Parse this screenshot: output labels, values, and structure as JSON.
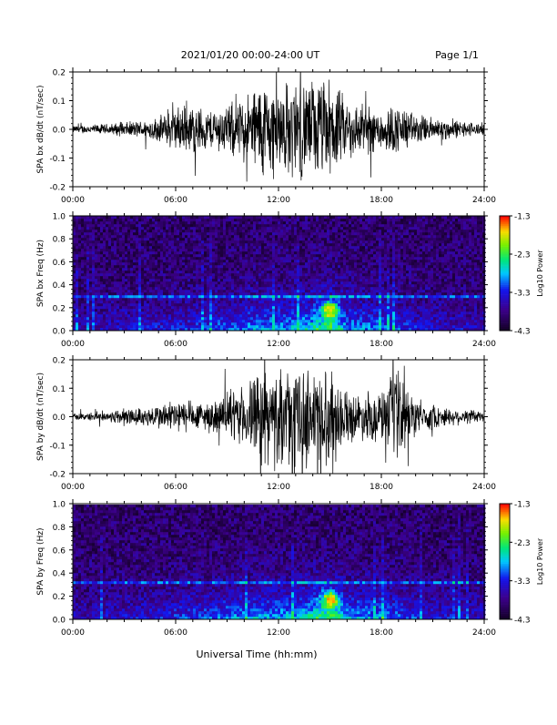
{
  "header": {
    "title": "2021/01/20  00:00-24:00 UT",
    "page": "Page 1/1"
  },
  "footer": {
    "xlabel": "Universal Time (hh:mm)"
  },
  "chart_data": [
    {
      "type": "line",
      "title": "",
      "ylabel": "SPA bx dB/dt (nT/sec)",
      "xlabel": "",
      "xlim": [
        "00:00",
        "24:00"
      ],
      "ylim": [
        -0.2,
        0.2
      ],
      "x_ticks": [
        "00:00",
        "06:00",
        "12:00",
        "18:00",
        "24:00"
      ],
      "y_ticks": [
        "-0.2",
        "-0.1",
        "0.0",
        "0.1",
        "0.2"
      ],
      "envelope": {
        "hours": [
          0,
          2,
          4,
          5,
          6,
          7,
          8,
          9,
          10,
          11,
          12,
          13,
          14,
          15,
          16,
          17,
          18,
          19,
          20,
          21,
          22,
          23,
          24
        ],
        "amplitude": [
          0.015,
          0.022,
          0.035,
          0.05,
          0.09,
          0.1,
          0.08,
          0.1,
          0.13,
          0.2,
          0.18,
          0.2,
          0.2,
          0.2,
          0.12,
          0.1,
          0.09,
          0.1,
          0.06,
          0.05,
          0.04,
          0.03,
          0.025
        ]
      },
      "color": "#000000"
    },
    {
      "type": "heatmap",
      "title": "",
      "ylabel": "SPA bx Freq (Hz)",
      "xlabel": "",
      "xlim": [
        "00:00",
        "24:00"
      ],
      "ylim": [
        0.0,
        1.0
      ],
      "x_ticks": [
        "00:00",
        "06:00",
        "12:00",
        "18:00",
        "24:00"
      ],
      "y_ticks": [
        "0.0",
        "0.2",
        "0.4",
        "0.6",
        "0.8",
        "1.0"
      ],
      "colorbar": {
        "label": "Log10 Power",
        "ticks": [
          "-1.3",
          "-2.3",
          "-3.3",
          "-4.3"
        ],
        "range": [
          -4.3,
          -1.3
        ]
      },
      "activity_hours": [
        0,
        3,
        6,
        9,
        11,
        12,
        13,
        14,
        15,
        16,
        18,
        20,
        24
      ],
      "activity_level": [
        0.2,
        0.3,
        0.35,
        0.5,
        0.65,
        0.6,
        0.7,
        0.85,
        1.0,
        0.6,
        0.55,
        0.35,
        0.25
      ],
      "peak": {
        "hour": 15,
        "freq_hz": 0.18,
        "log_power": -1.3
      },
      "line_freq_hz": 0.3
    },
    {
      "type": "line",
      "title": "",
      "ylabel": "SPA by dB/dt (nT/sec)",
      "xlabel": "",
      "xlim": [
        "00:00",
        "24:00"
      ],
      "ylim": [
        -0.2,
        0.2
      ],
      "x_ticks": [
        "00:00",
        "06:00",
        "12:00",
        "18:00",
        "24:00"
      ],
      "y_ticks": [
        "-0.2",
        "-0.1",
        "0.0",
        "0.1",
        "0.2"
      ],
      "envelope": {
        "hours": [
          0,
          2,
          3,
          4,
          5,
          6,
          7,
          8,
          9,
          10,
          11,
          12,
          13,
          14,
          15,
          16,
          17,
          18,
          19,
          20,
          21,
          22,
          23,
          24
        ],
        "amplitude": [
          0.012,
          0.02,
          0.04,
          0.035,
          0.05,
          0.07,
          0.06,
          0.06,
          0.09,
          0.12,
          0.2,
          0.18,
          0.2,
          0.2,
          0.2,
          0.1,
          0.09,
          0.1,
          0.2,
          0.07,
          0.05,
          0.035,
          0.03,
          0.025
        ]
      },
      "color": "#000000"
    },
    {
      "type": "heatmap",
      "title": "",
      "ylabel": "SPA by Freq (Hz)",
      "xlabel": "",
      "xlim": [
        "00:00",
        "24:00"
      ],
      "ylim": [
        0.0,
        1.0
      ],
      "x_ticks": [
        "00:00",
        "06:00",
        "12:00",
        "18:00",
        "24:00"
      ],
      "y_ticks": [
        "0.0",
        "0.2",
        "0.4",
        "0.6",
        "0.8",
        "1.0"
      ],
      "colorbar": {
        "label": "Log10 Power",
        "ticks": [
          "-1.3",
          "-2.3",
          "-3.3",
          "-4.3"
        ],
        "range": [
          -4.3,
          -1.3
        ]
      },
      "activity_hours": [
        0,
        3,
        6,
        9,
        11,
        12,
        13,
        14,
        15,
        16,
        18,
        20,
        24
      ],
      "activity_level": [
        0.2,
        0.3,
        0.4,
        0.55,
        0.65,
        0.65,
        0.7,
        0.85,
        1.0,
        0.65,
        0.6,
        0.4,
        0.25
      ],
      "peak": {
        "hour": 15,
        "freq_hz": 0.18,
        "log_power": -1.3
      },
      "line_freq_hz": 0.32
    }
  ]
}
